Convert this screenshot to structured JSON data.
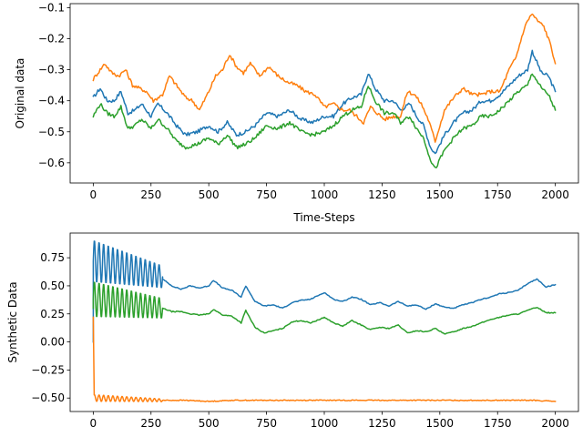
{
  "chart_data": [
    {
      "type": "line",
      "title": "",
      "xlabel": "Time-Steps",
      "ylabel": "Original data",
      "xlim": [
        -100,
        2100
      ],
      "ylim": [
        -0.665,
        -0.087
      ],
      "x_ticks": [
        0,
        250,
        500,
        750,
        1000,
        1250,
        1500,
        1750,
        2000
      ],
      "x_tick_labels": [
        "0",
        "250",
        "500",
        "750",
        "1000",
        "1250",
        "1500",
        "1750",
        "2000"
      ],
      "y_ticks": [
        -0.6,
        -0.5,
        -0.4,
        -0.3,
        -0.2,
        -0.1
      ],
      "y_tick_labels": [
        "−0.6",
        "−0.5",
        "−0.4",
        "−0.3",
        "−0.2",
        "−0.1"
      ],
      "grid": false,
      "series": [
        {
          "color": "#1f77b4",
          "x": [
            0,
            30,
            60,
            90,
            120,
            150,
            180,
            210,
            250,
            280,
            320,
            360,
            400,
            450,
            500,
            540,
            580,
            620,
            660,
            700,
            750,
            800,
            850,
            900,
            950,
            1000,
            1040,
            1080,
            1120,
            1160,
            1190,
            1220,
            1260,
            1300,
            1330,
            1370,
            1400,
            1430,
            1460,
            1480,
            1520,
            1560,
            1600,
            1640,
            1680,
            1720,
            1760,
            1800,
            1840,
            1880,
            1900,
            1940,
            1970,
            2000
          ],
          "y": [
            -0.39,
            -0.36,
            -0.4,
            -0.4,
            -0.37,
            -0.44,
            -0.43,
            -0.41,
            -0.45,
            -0.41,
            -0.44,
            -0.48,
            -0.51,
            -0.5,
            -0.48,
            -0.5,
            -0.47,
            -0.51,
            -0.5,
            -0.48,
            -0.44,
            -0.45,
            -0.43,
            -0.46,
            -0.47,
            -0.45,
            -0.45,
            -0.41,
            -0.39,
            -0.38,
            -0.31,
            -0.36,
            -0.4,
            -0.4,
            -0.43,
            -0.41,
            -0.45,
            -0.48,
            -0.55,
            -0.57,
            -0.51,
            -0.47,
            -0.44,
            -0.43,
            -0.4,
            -0.4,
            -0.38,
            -0.35,
            -0.32,
            -0.3,
            -0.24,
            -0.31,
            -0.32,
            -0.37
          ]
        },
        {
          "color": "#ff7f0e",
          "x": [
            0,
            20,
            50,
            80,
            110,
            140,
            170,
            200,
            230,
            260,
            300,
            330,
            360,
            400,
            430,
            460,
            500,
            530,
            560,
            590,
            620,
            650,
            680,
            720,
            760,
            800,
            840,
            880,
            920,
            960,
            1000,
            1040,
            1080,
            1110,
            1140,
            1170,
            1200,
            1230,
            1260,
            1300,
            1330,
            1360,
            1390,
            1420,
            1450,
            1480,
            1520,
            1560,
            1600,
            1640,
            1680,
            1720,
            1760,
            1800,
            1830,
            1860,
            1880,
            1900,
            1920,
            1950,
            1980,
            2000
          ],
          "y": [
            -0.33,
            -0.31,
            -0.28,
            -0.31,
            -0.32,
            -0.3,
            -0.35,
            -0.36,
            -0.37,
            -0.4,
            -0.38,
            -0.32,
            -0.35,
            -0.39,
            -0.4,
            -0.43,
            -0.37,
            -0.32,
            -0.3,
            -0.25,
            -0.29,
            -0.31,
            -0.28,
            -0.32,
            -0.29,
            -0.32,
            -0.34,
            -0.35,
            -0.37,
            -0.38,
            -0.42,
            -0.41,
            -0.43,
            -0.43,
            -0.45,
            -0.47,
            -0.42,
            -0.44,
            -0.46,
            -0.45,
            -0.45,
            -0.37,
            -0.38,
            -0.41,
            -0.46,
            -0.53,
            -0.43,
            -0.39,
            -0.36,
            -0.38,
            -0.38,
            -0.37,
            -0.37,
            -0.3,
            -0.26,
            -0.18,
            -0.14,
            -0.12,
            -0.14,
            -0.16,
            -0.22,
            -0.28
          ]
        },
        {
          "color": "#2ca02c",
          "x": [
            0,
            30,
            60,
            90,
            120,
            150,
            180,
            210,
            250,
            280,
            320,
            360,
            400,
            450,
            500,
            540,
            580,
            620,
            660,
            700,
            750,
            800,
            850,
            900,
            950,
            1000,
            1040,
            1080,
            1120,
            1160,
            1190,
            1220,
            1260,
            1300,
            1330,
            1370,
            1400,
            1430,
            1460,
            1480,
            1520,
            1560,
            1600,
            1640,
            1680,
            1720,
            1760,
            1800,
            1840,
            1880,
            1900,
            1940,
            1970,
            2000
          ],
          "y": [
            -0.45,
            -0.41,
            -0.44,
            -0.45,
            -0.42,
            -0.49,
            -0.48,
            -0.46,
            -0.49,
            -0.46,
            -0.49,
            -0.53,
            -0.55,
            -0.54,
            -0.52,
            -0.54,
            -0.51,
            -0.55,
            -0.54,
            -0.52,
            -0.48,
            -0.49,
            -0.47,
            -0.5,
            -0.51,
            -0.5,
            -0.48,
            -0.45,
            -0.43,
            -0.42,
            -0.35,
            -0.4,
            -0.44,
            -0.44,
            -0.47,
            -0.45,
            -0.49,
            -0.52,
            -0.59,
            -0.62,
            -0.56,
            -0.52,
            -0.49,
            -0.48,
            -0.45,
            -0.45,
            -0.43,
            -0.4,
            -0.37,
            -0.35,
            -0.31,
            -0.36,
            -0.38,
            -0.43
          ]
        }
      ]
    },
    {
      "type": "line",
      "title": "",
      "xlabel": "",
      "ylabel": "Synthetic Data",
      "xlim": [
        -100,
        2100
      ],
      "ylim": [
        -0.62,
        0.97
      ],
      "x_ticks": [
        0,
        250,
        500,
        750,
        1000,
        1250,
        1500,
        1750,
        2000
      ],
      "x_tick_labels": [
        "0",
        "250",
        "500",
        "750",
        "1000",
        "1250",
        "1500",
        "1750",
        "2000"
      ],
      "y_ticks": [
        -0.5,
        -0.25,
        0.0,
        0.25,
        0.5,
        0.75
      ],
      "y_tick_labels": [
        "−0.50",
        "−0.25",
        "0.00",
        "0.25",
        "0.50",
        "0.75"
      ],
      "grid": false,
      "series": [
        {
          "color": "#1f77b4",
          "start": 0,
          "oscillation": {
            "from": 0,
            "to": 300,
            "period": 20,
            "center_start": 0.72,
            "center_end": 0.58,
            "amp_start": 0.19,
            "amp_end": 0.1
          },
          "x": [
            300,
            340,
            380,
            420,
            460,
            500,
            520,
            560,
            600,
            640,
            660,
            700,
            740,
            780,
            820,
            860,
            900,
            940,
            980,
            1000,
            1040,
            1080,
            1120,
            1160,
            1200,
            1240,
            1280,
            1320,
            1360,
            1400,
            1440,
            1480,
            1520,
            1560,
            1600,
            1640,
            1680,
            1720,
            1760,
            1800,
            1840,
            1880,
            1920,
            1960,
            2000
          ],
          "y": [
            0.56,
            0.5,
            0.47,
            0.5,
            0.48,
            0.5,
            0.55,
            0.48,
            0.46,
            0.4,
            0.5,
            0.36,
            0.32,
            0.33,
            0.3,
            0.35,
            0.37,
            0.38,
            0.42,
            0.44,
            0.38,
            0.36,
            0.4,
            0.38,
            0.33,
            0.35,
            0.32,
            0.36,
            0.32,
            0.33,
            0.29,
            0.34,
            0.31,
            0.3,
            0.33,
            0.35,
            0.38,
            0.4,
            0.43,
            0.44,
            0.46,
            0.52,
            0.56,
            0.49,
            0.51
          ]
        },
        {
          "color": "#ff7f0e",
          "start": 0.22,
          "oscillation": {
            "from": 4,
            "to": 300,
            "period": 20,
            "center_start": -0.5,
            "center_end": -0.52,
            "amp_start": 0.03,
            "amp_end": 0.012
          },
          "x": [
            300,
            400,
            500,
            600,
            700,
            800,
            900,
            1000,
            1100,
            1200,
            1300,
            1400,
            1500,
            1600,
            1700,
            1800,
            1900,
            2000
          ],
          "y": [
            -0.52,
            -0.52,
            -0.53,
            -0.52,
            -0.52,
            -0.52,
            -0.52,
            -0.52,
            -0.52,
            -0.52,
            -0.52,
            -0.52,
            -0.52,
            -0.52,
            -0.52,
            -0.52,
            -0.52,
            -0.53
          ]
        },
        {
          "color": "#2ca02c",
          "start": 0.3,
          "oscillation": {
            "from": 0,
            "to": 300,
            "period": 20,
            "center_start": 0.38,
            "center_end": 0.3,
            "amp_start": 0.16,
            "amp_end": 0.09
          },
          "x": [
            300,
            340,
            380,
            420,
            460,
            500,
            520,
            560,
            600,
            640,
            660,
            700,
            740,
            780,
            820,
            860,
            900,
            940,
            980,
            1000,
            1040,
            1080,
            1120,
            1160,
            1200,
            1240,
            1280,
            1320,
            1360,
            1400,
            1440,
            1480,
            1520,
            1560,
            1600,
            1640,
            1680,
            1720,
            1760,
            1800,
            1840,
            1880,
            1920,
            1960,
            2000
          ],
          "y": [
            0.3,
            0.27,
            0.27,
            0.25,
            0.24,
            0.25,
            0.29,
            0.24,
            0.23,
            0.17,
            0.28,
            0.13,
            0.08,
            0.1,
            0.12,
            0.18,
            0.19,
            0.17,
            0.2,
            0.22,
            0.17,
            0.14,
            0.19,
            0.15,
            0.11,
            0.13,
            0.12,
            0.15,
            0.08,
            0.1,
            0.09,
            0.12,
            0.07,
            0.09,
            0.12,
            0.14,
            0.17,
            0.2,
            0.22,
            0.24,
            0.25,
            0.28,
            0.31,
            0.26,
            0.26
          ]
        }
      ]
    }
  ]
}
